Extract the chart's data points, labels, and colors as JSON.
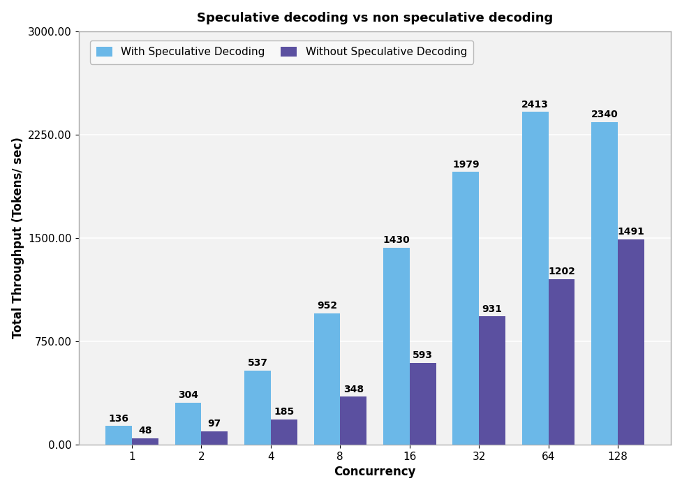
{
  "title": "Speculative decoding vs non speculative decoding",
  "xlabel": "Concurrency",
  "ylabel": "Total Throughput (Tokens/ sec)",
  "categories": [
    "1",
    "2",
    "4",
    "8",
    "16",
    "32",
    "64",
    "128"
  ],
  "with_spec": [
    136,
    304,
    537,
    952,
    1430,
    1979,
    2413,
    2340
  ],
  "without_spec": [
    48,
    97,
    185,
    348,
    593,
    931,
    1202,
    1491
  ],
  "color_with": "#6BB8E8",
  "color_without": "#5B50A0",
  "ylim": [
    0,
    3000
  ],
  "yticks": [
    0.0,
    750.0,
    1500.0,
    2250.0,
    3000.0
  ],
  "legend_with": "With Speculative Decoding",
  "legend_without": "Without Speculative Decoding",
  "bar_width": 0.38,
  "plot_bg_color": "#F2F2F2",
  "fig_bg_color": "#FFFFFF",
  "grid_color": "#FFFFFF",
  "title_fontsize": 13,
  "label_fontsize": 12,
  "tick_fontsize": 11,
  "annotation_fontsize": 10,
  "spine_color": "#AAAAAA"
}
